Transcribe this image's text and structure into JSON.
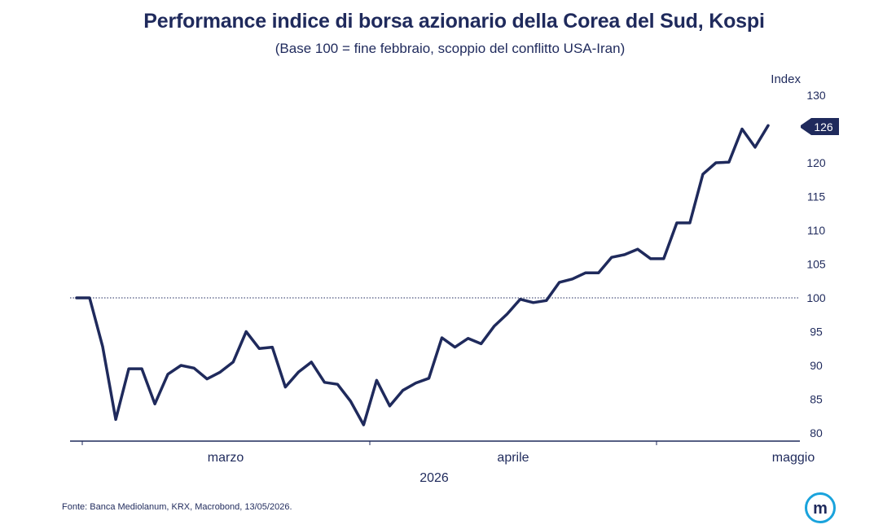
{
  "chart_data": {
    "type": "line",
    "title": "Performance indice di borsa azionario della Corea del Sud, Kospi",
    "subtitle": "(Base 100 = fine febbraio, scoppio del conflitto USA-Iran)",
    "ylabel": "Index",
    "ylim": [
      80,
      130
    ],
    "yticks": [
      80,
      85,
      90,
      95,
      100,
      105,
      110,
      115,
      120,
      125,
      130
    ],
    "ytick_labels": [
      "80",
      "85",
      "90",
      "95",
      "100",
      "105",
      "110",
      "115",
      "120",
      "",
      "130"
    ],
    "x_month_labels": [
      "marzo",
      "aprile",
      "maggio"
    ],
    "x_year_label": "2026",
    "reference_line": 100,
    "last_value_label": "126",
    "series": [
      {
        "values": [
          100,
          100,
          92.8,
          82,
          89.5,
          89.5,
          84.3,
          88.7,
          90,
          89.6,
          88,
          89,
          90.5,
          95,
          92.5,
          92.7,
          86.8,
          89,
          90.5,
          87.5,
          87.2,
          84.7,
          81.2,
          87.8,
          84,
          86.3,
          87.4,
          88.1,
          94.1,
          92.7,
          94,
          93.2,
          95.8,
          97.6,
          99.8,
          99.3,
          99.6,
          102.3,
          102.8,
          103.7,
          103.7,
          106,
          106.4,
          107.2,
          105.8,
          105.8,
          111.1,
          111.1,
          118.3,
          120,
          120.1,
          125,
          122.3,
          125.5
        ],
        "color": "#1f2a5c"
      }
    ]
  },
  "source": "Fonte: Banca Mediolanum, KRX, Macrobond, 13/05/2026."
}
